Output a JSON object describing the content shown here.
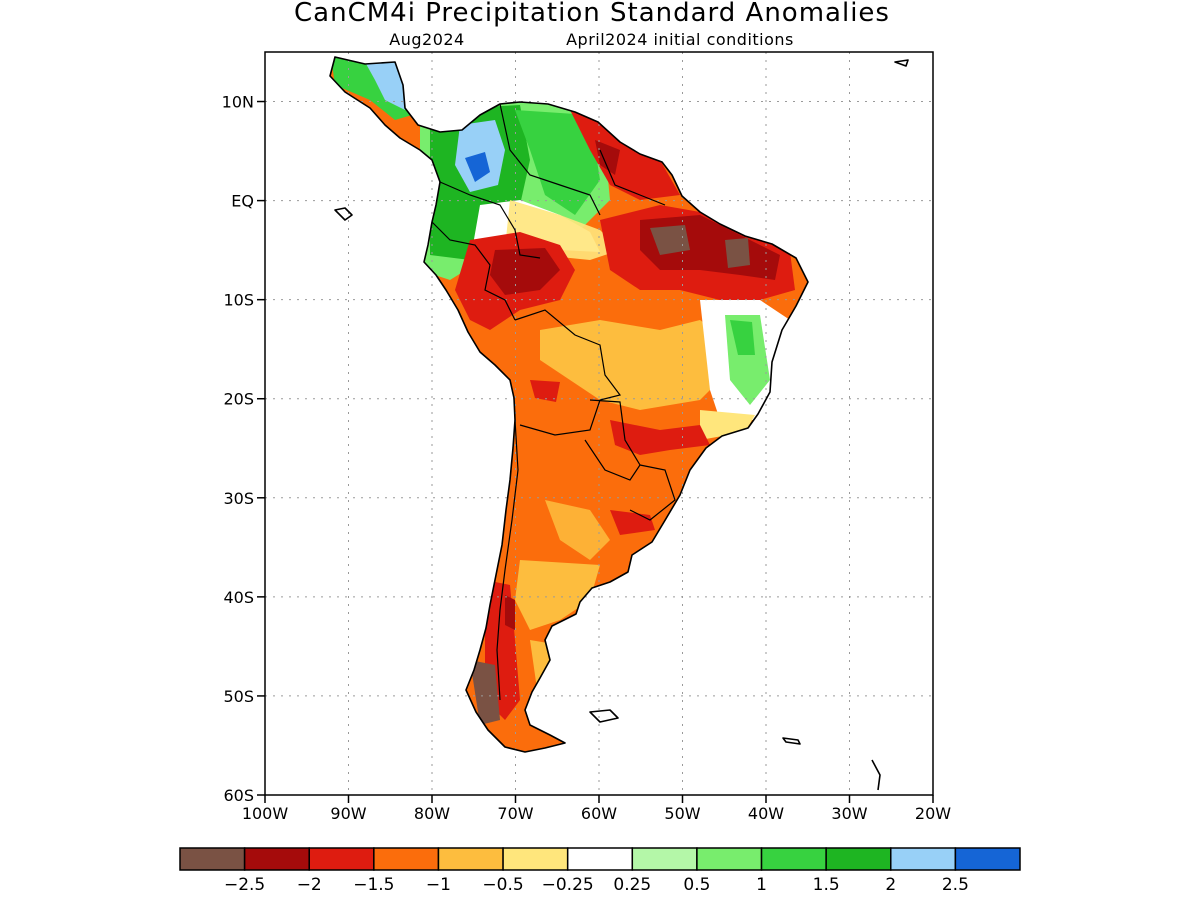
{
  "title": "CanCM4i Precipitation Standard Anomalies",
  "subtitle_left": "Aug2024",
  "subtitle_right": "April2024 initial conditions",
  "map": {
    "lon_range": [
      -100,
      -20
    ],
    "lat_range": [
      -60,
      15
    ],
    "lat_ticks": [
      {
        "lat": 10,
        "label": "10N"
      },
      {
        "lat": 0,
        "label": "EQ"
      },
      {
        "lat": -10,
        "label": "10S"
      },
      {
        "lat": -20,
        "label": "20S"
      },
      {
        "lat": -30,
        "label": "30S"
      },
      {
        "lat": -40,
        "label": "40S"
      },
      {
        "lat": -50,
        "label": "50S"
      },
      {
        "lat": -60,
        "label": "60S"
      }
    ],
    "lon_ticks": [
      {
        "lon": -100,
        "label": "100W"
      },
      {
        "lon": -90,
        "label": "90W"
      },
      {
        "lon": -80,
        "label": "80W"
      },
      {
        "lon": -70,
        "label": "70W"
      },
      {
        "lon": -60,
        "label": "60W"
      },
      {
        "lon": -50,
        "label": "50W"
      },
      {
        "lon": -40,
        "label": "40W"
      },
      {
        "lon": -30,
        "label": "30W"
      },
      {
        "lon": -20,
        "label": "20W"
      }
    ]
  },
  "colorbar": {
    "colors": [
      "#7a5244",
      "#a50b0b",
      "#de1c10",
      "#fb6d0c",
      "#fdbd3e",
      "#ffe67c",
      "#ffffff",
      "#b4f7a8",
      "#78ed6d",
      "#37d240",
      "#1eb522",
      "#98d0f7",
      "#1565d6"
    ],
    "labels": [
      "−2.5",
      "−2",
      "−1.5",
      "−1",
      "−0.5",
      "−0.25",
      "0.25",
      "0.5",
      "1",
      "1.5",
      "2",
      "2.5"
    ]
  },
  "palette": {
    "brown": "#7a5244",
    "darkred": "#a50b0b",
    "red": "#de1c10",
    "orange": "#fb6d0c",
    "lightorange": "#fdbd3e",
    "yellow": "#ffe67c",
    "white": "#ffffff",
    "palegreen": "#b4f7a8",
    "lightgreen": "#78ed6d",
    "green": "#37d240",
    "darkgreen": "#1eb522",
    "lightblue": "#98d0f7",
    "blue": "#1565d6"
  }
}
